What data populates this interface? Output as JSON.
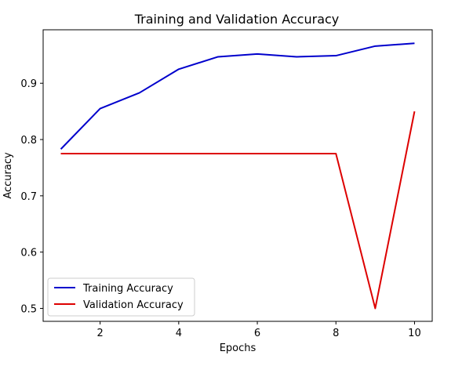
{
  "chart_data": {
    "type": "line",
    "title": "Training and Validation Accuracy",
    "xlabel": "Epochs",
    "ylabel": "Accuracy",
    "x": [
      1,
      2,
      3,
      4,
      5,
      6,
      7,
      8,
      9,
      10
    ],
    "xlim": [
      0.55,
      10.45
    ],
    "ylim": [
      0.477,
      0.995
    ],
    "xticks": [
      2,
      4,
      6,
      8,
      10
    ],
    "yticks": [
      0.5,
      0.6,
      0.7,
      0.8,
      0.9
    ],
    "grid": false,
    "legend_position": "bottom-left",
    "series": [
      {
        "name": "Training Accuracy",
        "color": "#0000cc",
        "values": [
          0.783,
          0.855,
          0.883,
          0.925,
          0.947,
          0.952,
          0.947,
          0.949,
          0.966,
          0.971
        ]
      },
      {
        "name": "Validation Accuracy",
        "color": "#dd0000",
        "values": [
          0.775,
          0.775,
          0.775,
          0.775,
          0.775,
          0.775,
          0.775,
          0.775,
          0.5,
          0.85
        ]
      }
    ]
  }
}
